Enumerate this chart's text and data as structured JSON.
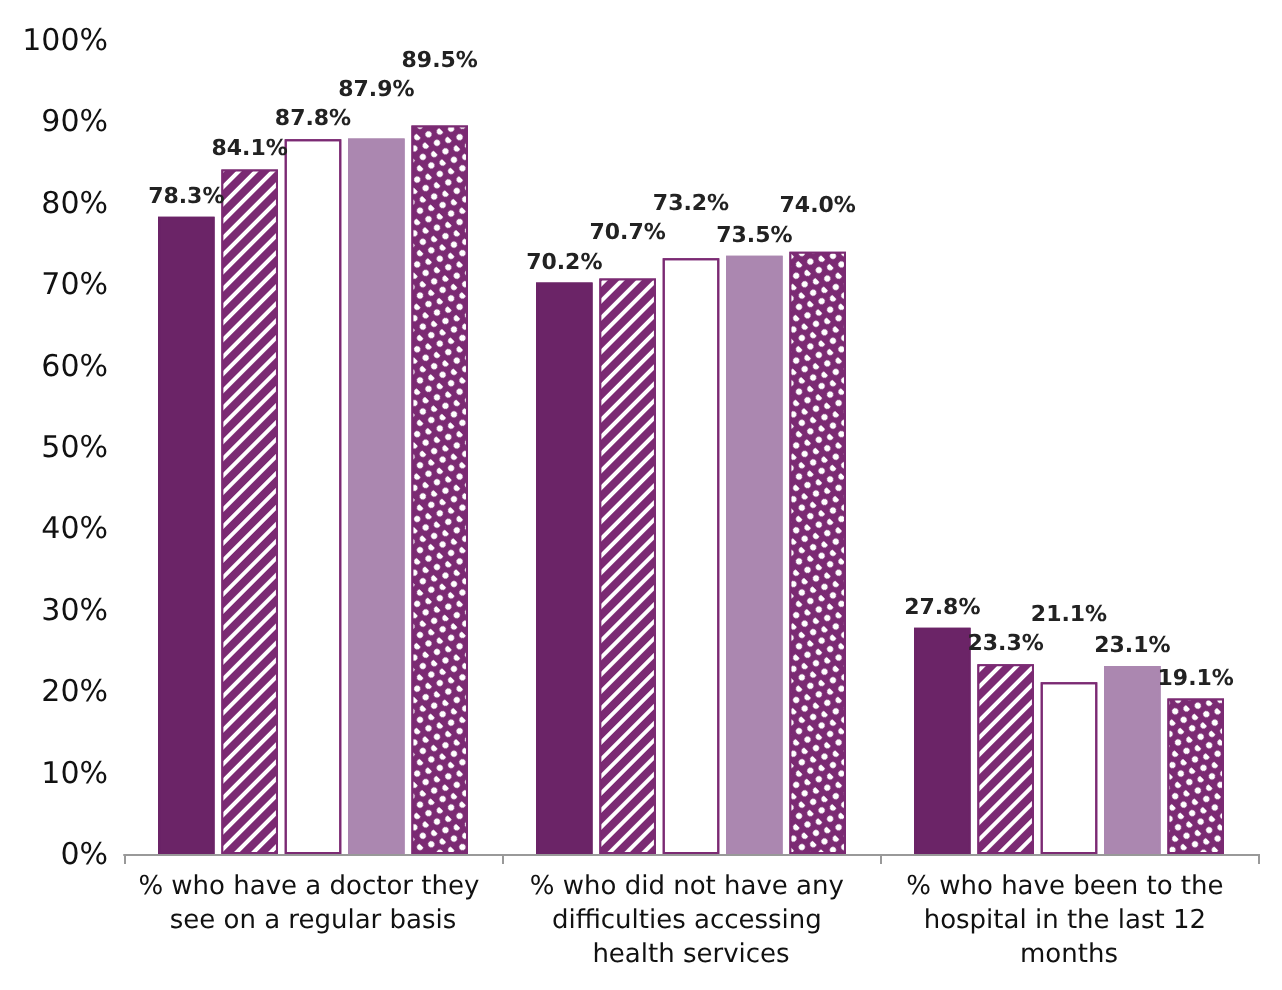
{
  "chart_data": {
    "type": "bar",
    "categories": [
      "% who have a doctor they see on a regular basis",
      "% who did not have any difficulties accessing health services",
      "% who have been to the hospital in the last 12 months"
    ],
    "series": [
      {
        "color": "#6b2467",
        "values": [
          78.3,
          70.2,
          27.8
        ],
        "value_labels": [
          "78.3%",
          "70.2%",
          "27.8%"
        ]
      },
      {
        "color": "#7b2a73",
        "values": [
          84.1,
          70.7,
          23.3
        ],
        "value_labels": [
          "84.1%",
          "70.7%",
          "23.3%"
        ]
      },
      {
        "color": "#ffffff",
        "values": [
          87.8,
          73.2,
          21.1
        ],
        "value_labels": [
          "87.8%",
          "73.2%",
          "21.1%"
        ]
      },
      {
        "color": "#ab87b0",
        "values": [
          87.9,
          73.5,
          23.1
        ],
        "value_labels": [
          "87.9%",
          "73.5%",
          "23.1%"
        ]
      },
      {
        "color": "#7b2a73",
        "values": [
          89.5,
          74.0,
          19.1
        ],
        "value_labels": [
          "89.5%",
          "74.0%",
          "19.1%"
        ]
      }
    ],
    "ylim": [
      0,
      100
    ],
    "yticks": [
      {
        "value": 0,
        "label": "0%"
      },
      {
        "value": 10,
        "label": "10%"
      },
      {
        "value": 20,
        "label": "20%"
      },
      {
        "value": 30,
        "label": "30%"
      },
      {
        "value": 40,
        "label": "40%"
      },
      {
        "value": 50,
        "label": "50%"
      },
      {
        "value": 60,
        "label": "60%"
      },
      {
        "value": 70,
        "label": "70%"
      },
      {
        "value": 80,
        "label": "80%"
      },
      {
        "value": 90,
        "label": "90%"
      },
      {
        "value": 100,
        "label": "100%"
      }
    ],
    "grid": false
  }
}
